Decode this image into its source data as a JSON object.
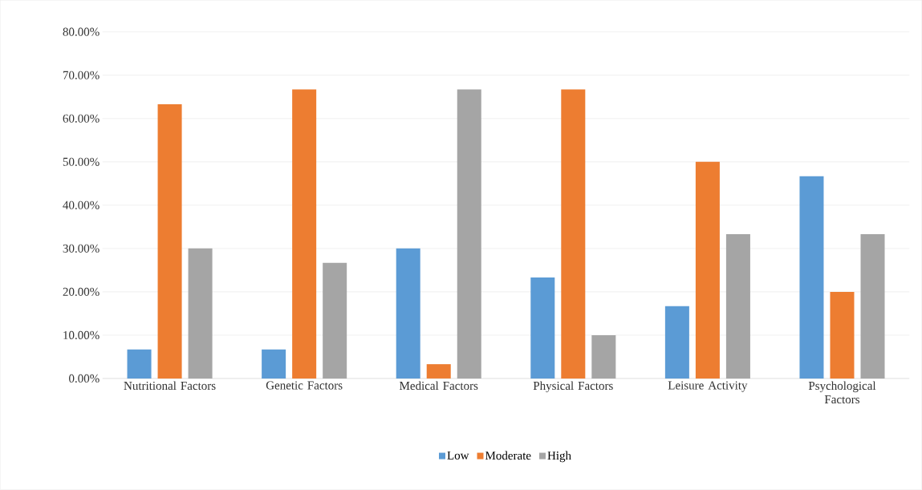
{
  "chart_data": {
    "type": "bar",
    "categories": [
      "Nutritional Factors",
      "Genetic Factors",
      "Medical Factors",
      "Physical Factors",
      "Leisure Activity",
      "Psychological Factors"
    ],
    "series": [
      {
        "name": "Low",
        "color": "#5b9bd5",
        "values": [
          6.7,
          6.7,
          30,
          23.3,
          16.7,
          46.7
        ]
      },
      {
        "name": "Moderate",
        "color": "#ed7d31",
        "values": [
          63.3,
          66.7,
          3.3,
          66.7,
          50,
          20
        ]
      },
      {
        "name": "High",
        "color": "#a5a5a5",
        "values": [
          30,
          26.7,
          66.7,
          10,
          33.3,
          33.3
        ]
      }
    ],
    "ylim": [
      0,
      80
    ],
    "yticks": [
      {
        "value": 0,
        "label": "0.00%"
      },
      {
        "value": 10,
        "label": "10.00%"
      },
      {
        "value": 20,
        "label": "20.00%"
      },
      {
        "value": 30,
        "label": "30.00%"
      },
      {
        "value": 40,
        "label": "40.00%"
      },
      {
        "value": 50,
        "label": "50.00%"
      },
      {
        "value": 60,
        "label": "60.00%"
      },
      {
        "value": 70,
        "label": "70.00%"
      },
      {
        "value": 80,
        "label": "80.00%"
      }
    ],
    "grid": "y",
    "legend": "bottom"
  }
}
